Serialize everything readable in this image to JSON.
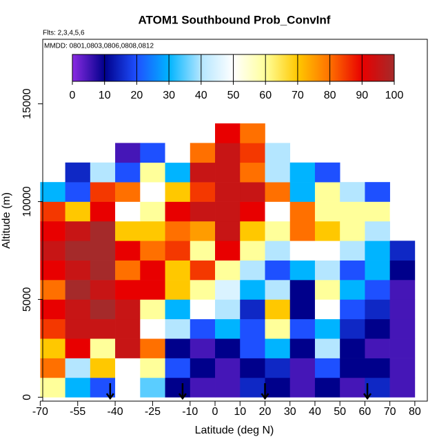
{
  "chart_data": {
    "type": "heatmap",
    "title": "ATOM1 Southbound Prob_ConvInf",
    "subtitle": "Flts: 2,3,4,5,6",
    "annotation": "MMDD: 0801,0803,0806,0808,0812",
    "x_label": "Latitude (deg N)",
    "y_label": "Altitude (m)",
    "xlim": [
      -69,
      85
    ],
    "ylim": [
      -200,
      18300
    ],
    "xticks": [
      -70,
      -55,
      -40,
      -25,
      -10,
      0,
      10,
      20,
      30,
      40,
      50,
      60,
      70,
      80
    ],
    "yticks": [
      0,
      5000,
      10000,
      15000
    ],
    "x_bins": [
      -70,
      -60,
      -50,
      -40,
      -30,
      -20,
      -10,
      0,
      10,
      20,
      30,
      40,
      50,
      60,
      70,
      80
    ],
    "y_bins": [
      0,
      1000,
      2000,
      3000,
      4000,
      5000,
      6000,
      7000,
      8000,
      9000,
      10000,
      11000,
      12000,
      13000,
      14000
    ],
    "z": [
      [
        60,
        30,
        20,
        50,
        35,
        10,
        5,
        5,
        15,
        10,
        5,
        10,
        5,
        15,
        5
      ],
      [
        80,
        40,
        70,
        50,
        60,
        20,
        10,
        5,
        10,
        15,
        5,
        20,
        10,
        10,
        5
      ],
      [
        70,
        90,
        60,
        95,
        80,
        10,
        5,
        10,
        20,
        30,
        10,
        40,
        10,
        5,
        5
      ],
      [
        85,
        95,
        95,
        95,
        50,
        40,
        20,
        30,
        20,
        60,
        20,
        30,
        15,
        10,
        5
      ],
      [
        90,
        95,
        100,
        95,
        60,
        30,
        50,
        40,
        15,
        70,
        10,
        50,
        20,
        15,
        5
      ],
      [
        80,
        100,
        95,
        90,
        90,
        70,
        60,
        45,
        30,
        40,
        10,
        60,
        30,
        20,
        5
      ],
      [
        90,
        95,
        100,
        80,
        90,
        70,
        85,
        60,
        40,
        20,
        30,
        40,
        20,
        30,
        10
      ],
      [
        95,
        100,
        100,
        90,
        80,
        85,
        60,
        90,
        60,
        40,
        50,
        50,
        40,
        30,
        15
      ],
      [
        90,
        95,
        100,
        70,
        70,
        80,
        75,
        95,
        70,
        60,
        80,
        70,
        60,
        40,
        null
      ],
      [
        85,
        70,
        90,
        50,
        60,
        90,
        95,
        95,
        90,
        50,
        80,
        60,
        60,
        60,
        50
      ],
      [
        30,
        20,
        85,
        80,
        50,
        70,
        85,
        95,
        95,
        80,
        30,
        60,
        40,
        20,
        null
      ],
      [
        null,
        15,
        40,
        20,
        60,
        30,
        95,
        95,
        80,
        40,
        30,
        20,
        null,
        null,
        null
      ],
      [
        null,
        null,
        null,
        5,
        20,
        50,
        80,
        95,
        85,
        40,
        null,
        null,
        null,
        null,
        null
      ],
      [
        null,
        null,
        null,
        null,
        null,
        null,
        null,
        90,
        80,
        null,
        null,
        null,
        null,
        null,
        null
      ]
    ],
    "clim": [
      0,
      100
    ],
    "colorbar_ticks": [
      0,
      10,
      20,
      30,
      40,
      50,
      60,
      70,
      80,
      90,
      100
    ],
    "colors": [
      "#8a2be2",
      "#00008b",
      "#1e50ff",
      "#00b4ff",
      "#b4e6ff",
      "#ffffff",
      "#ffff9a",
      "#ffc800",
      "#ff7000",
      "#e80000",
      "#a52a2a"
    ],
    "arrows_x": [
      -42,
      -13,
      20,
      61
    ]
  }
}
